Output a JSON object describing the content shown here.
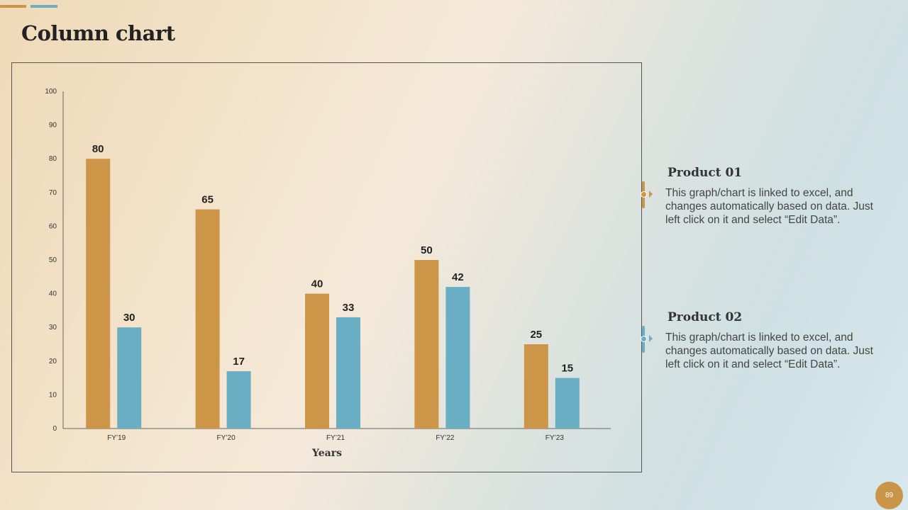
{
  "slide": {
    "title": "Column chart",
    "page_number": "89"
  },
  "colors": {
    "product_01": "#cc9547",
    "product_02": "#6aaec4"
  },
  "legend": [
    {
      "heading": "Product 01",
      "text": "This graph/chart is linked to excel, and changes automatically based on data. Just left click on it and select “Edit Data”."
    },
    {
      "heading": "Product 02",
      "text": "This graph/chart is linked to excel, and changes automatically based on data. Just left click on it and select “Edit Data”."
    }
  ],
  "chart_data": {
    "type": "bar",
    "title": "Column chart",
    "xlabel": "Years",
    "ylabel": "",
    "categories": [
      "FY’19",
      "FY’20",
      "FY’21",
      "FY’22",
      "FY’23"
    ],
    "series": [
      {
        "name": "Product 01",
        "values": [
          80,
          65,
          40,
          50,
          25
        ]
      },
      {
        "name": "Product 02",
        "values": [
          30,
          17,
          33,
          42,
          15
        ]
      }
    ],
    "ylim": [
      0,
      100
    ],
    "yticks": [
      0,
      10,
      20,
      30,
      40,
      50,
      60,
      70,
      80,
      90,
      100
    ],
    "grid": false,
    "legend": "right"
  }
}
